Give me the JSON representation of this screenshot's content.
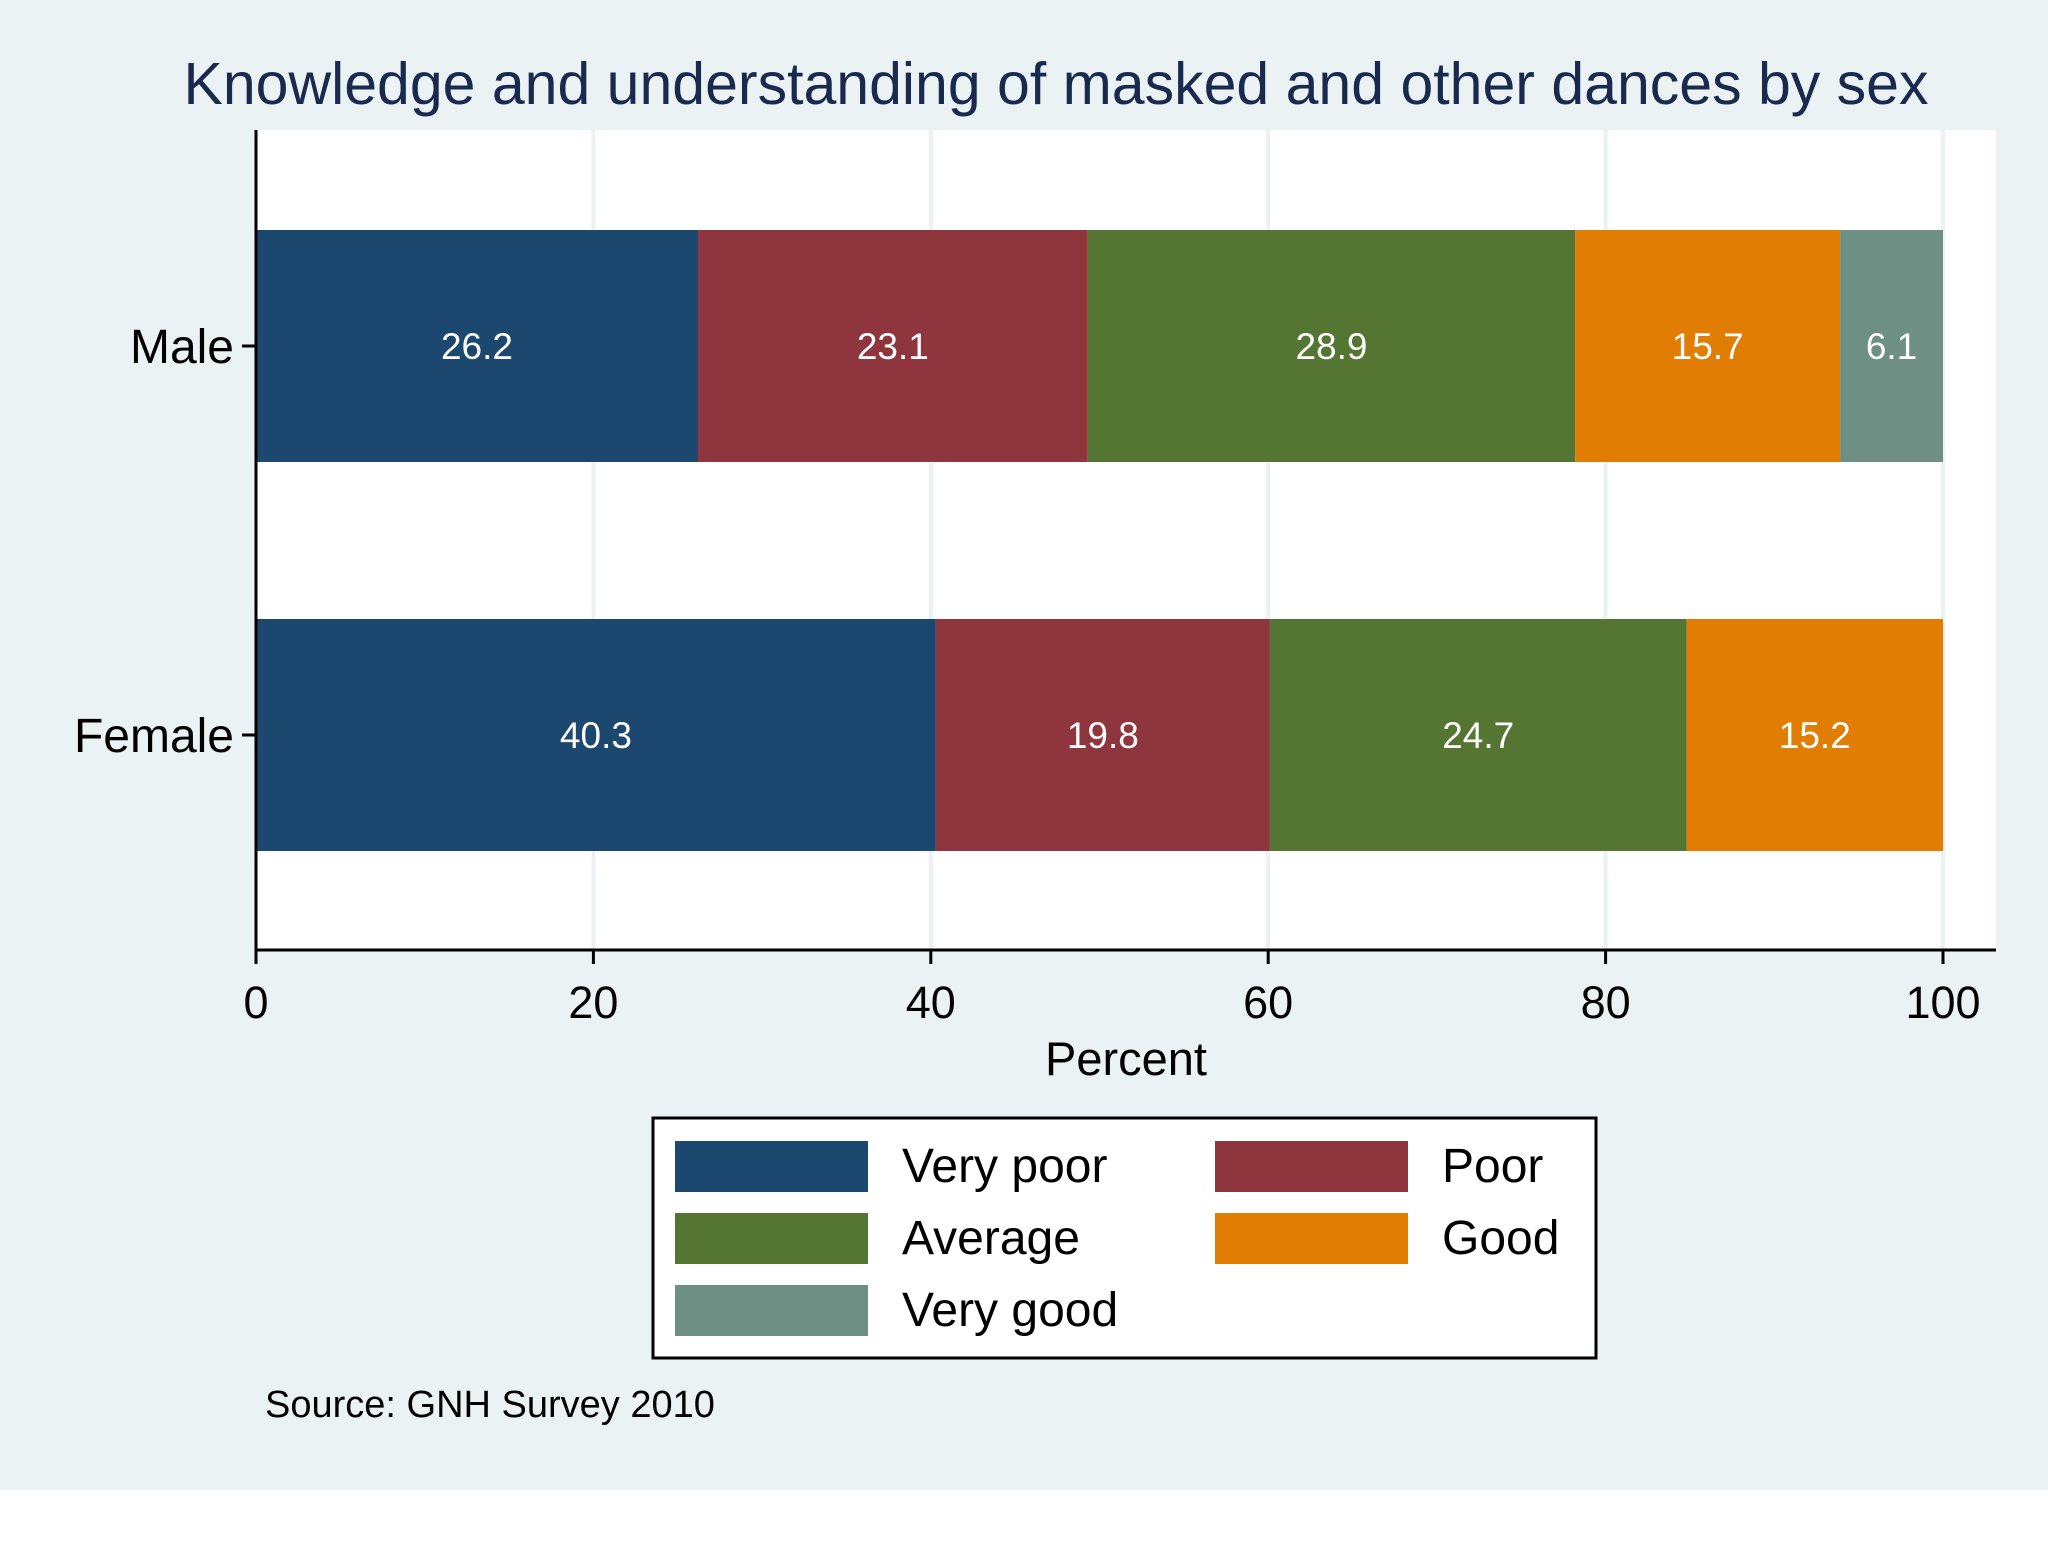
{
  "chart_data": {
    "type": "bar",
    "orientation": "horizontal",
    "stacked": true,
    "title": "Knowledge and understanding of masked and other dances by sex",
    "xlabel": "Percent",
    "ylabel": "",
    "xlim": [
      0,
      100
    ],
    "xticks": [
      "0",
      "20",
      "40",
      "60",
      "80",
      "100"
    ],
    "categories": [
      "Male",
      "Female"
    ],
    "series": [
      {
        "name": "Very poor",
        "color": "#1c4870",
        "values": [
          26.2,
          40.3
        ],
        "labels": [
          "26.2",
          "40.3"
        ]
      },
      {
        "name": "Poor",
        "color": "#8e353e",
        "values": [
          23.1,
          19.8
        ],
        "labels": [
          "23.1",
          "19.8"
        ]
      },
      {
        "name": "Average",
        "color": "#557632",
        "values": [
          28.9,
          24.7
        ],
        "labels": [
          "28.9",
          "24.7"
        ]
      },
      {
        "name": "Good",
        "color": "#e27d03",
        "values": [
          15.7,
          15.2
        ],
        "labels": [
          "15.7",
          "15.2"
        ]
      },
      {
        "name": "Very good",
        "color": "#6e8f84",
        "values": [
          6.1,
          0
        ],
        "labels": [
          "6.1",
          ""
        ]
      }
    ],
    "legend": {
      "position": "bottom",
      "columns": 2,
      "order": [
        "Very poor",
        "Poor",
        "Average",
        "Good",
        "Very good"
      ]
    },
    "grid": true,
    "note": "Source: GNH Survey 2010",
    "colors": {
      "background": "#eaf2f3",
      "plot_background": "#ffffff",
      "title": "#1a2a4f",
      "text": "#000000",
      "bar_label": "#ffffff",
      "grid": "#eaf2f3"
    }
  }
}
